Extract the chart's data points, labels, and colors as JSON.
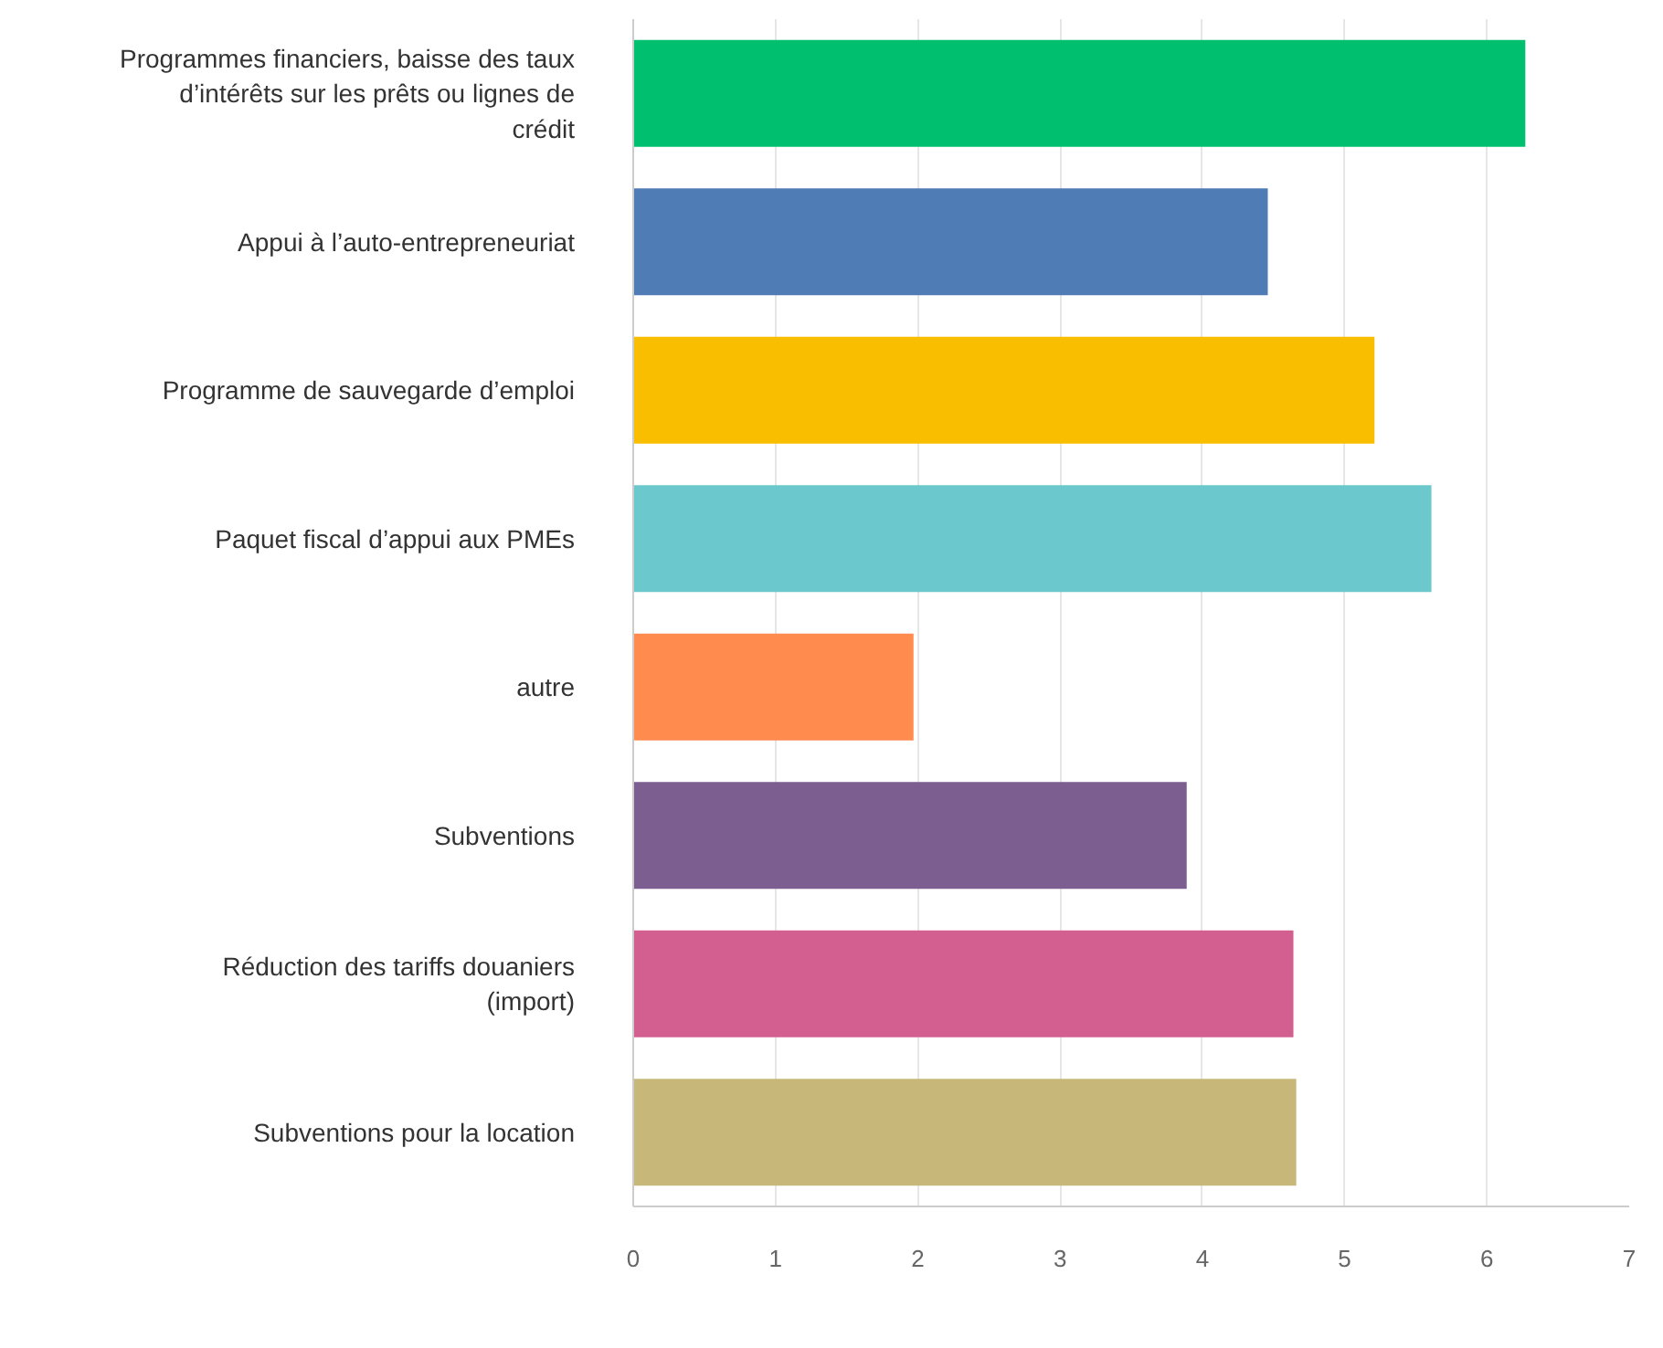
{
  "chart_data": {
    "type": "bar",
    "orientation": "horizontal",
    "categories": [
      "Programmes financiers, baisse des taux d’intérêts sur les prêts ou lignes de crédit",
      "Appui à l’auto-entrepreneuriat",
      "Programme de sauvegarde d’emploi",
      "Paquet fiscal d’appui aux PMEs",
      "autre",
      "Subventions",
      "Réduction des tariffs douaniers (import)",
      "Subventions pour la location"
    ],
    "values": [
      6.27,
      4.46,
      5.21,
      5.61,
      1.97,
      3.89,
      4.64,
      4.66
    ],
    "colors": [
      "#00bf6f",
      "#507cb6",
      "#f9be00",
      "#6bc8cd",
      "#ff8b4f",
      "#7d5e90",
      "#d25f90",
      "#c7b879"
    ],
    "xlim": [
      0,
      7
    ],
    "xticks": [
      0,
      1,
      2,
      3,
      4,
      5,
      6,
      7
    ],
    "grid": "x"
  }
}
